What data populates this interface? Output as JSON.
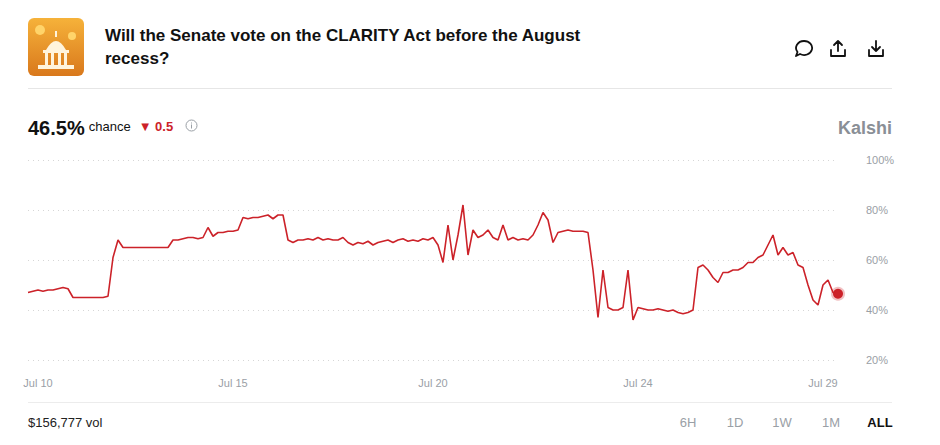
{
  "chart_data": {
    "type": "line",
    "title": "Will the Senate vote on the CLARITY Act before the August recess?",
    "categories": [
      null,
      null,
      "Jul 10",
      null,
      null,
      null,
      null,
      null,
      null,
      null,
      null,
      null,
      null,
      null,
      null,
      null,
      null,
      null,
      null,
      null,
      null,
      null,
      null,
      null,
      null,
      null,
      null,
      null,
      null,
      null,
      null,
      null,
      null,
      null,
      null,
      null,
      null,
      null,
      null,
      null,
      null,
      "Jul 15",
      null,
      null,
      null,
      null,
      null,
      null,
      null,
      null,
      null,
      null,
      null,
      null,
      null,
      null,
      null,
      null,
      null,
      null,
      null,
      null,
      null,
      null,
      null,
      null,
      null,
      null,
      null,
      null,
      null,
      null,
      null,
      null,
      null,
      null,
      null,
      null,
      null,
      null,
      null,
      "Jul 20",
      null,
      null,
      null,
      null,
      null,
      null,
      null,
      null,
      null,
      null,
      null,
      null,
      null,
      null,
      null,
      null,
      null,
      null,
      null,
      null,
      null,
      null,
      null,
      null,
      null,
      null,
      null,
      null,
      null,
      null,
      null,
      null,
      null,
      null,
      null,
      null,
      null,
      null,
      null,
      null,
      "Jul 24",
      null,
      null,
      null,
      null,
      null,
      null,
      null,
      null,
      null,
      null,
      null,
      null,
      null,
      null,
      null,
      null,
      null,
      null,
      null,
      null,
      null,
      null,
      null,
      null,
      null,
      null,
      null,
      null,
      null,
      null,
      null,
      null,
      null,
      null,
      null,
      null,
      "Jul 29",
      null,
      null,
      null
    ],
    "values": [
      47,
      47.5,
      48,
      47.5,
      48,
      48,
      48.5,
      49,
      48.5,
      45,
      45,
      45,
      45,
      45,
      45,
      45,
      45.5,
      61,
      68,
      65,
      65,
      65,
      65,
      65,
      65,
      65,
      65,
      65,
      65,
      68,
      68,
      68.5,
      69,
      69,
      68.5,
      69,
      73,
      69.5,
      71,
      71,
      71.5,
      71.5,
      72,
      77,
      76.5,
      77,
      77,
      77.5,
      78,
      76.5,
      78,
      78,
      68,
      67,
      68,
      68,
      68.5,
      68,
      69,
      68,
      68.5,
      68,
      68,
      69,
      67,
      66,
      67,
      66.5,
      67.5,
      66,
      67,
      67.5,
      68,
      67,
      68,
      68.5,
      67.5,
      68,
      67.5,
      68.5,
      68,
      69,
      66,
      59,
      74,
      60,
      70,
      82,
      62,
      72,
      69,
      70,
      72,
      69,
      68,
      74,
      68,
      69,
      68,
      68.5,
      68,
      70,
      74,
      79,
      76,
      67,
      71,
      71.5,
      72,
      71.5,
      71.5,
      71.5,
      71,
      56,
      37,
      56,
      41,
      40,
      40,
      41,
      56,
      36,
      41,
      40.5,
      40,
      40,
      40.5,
      40,
      39.5,
      40,
      39,
      38.5,
      39,
      40,
      57,
      58,
      56,
      53,
      51,
      55,
      55,
      56,
      56,
      57,
      59,
      59,
      61,
      62,
      66,
      70,
      62,
      65,
      62,
      63,
      58,
      57,
      50,
      44,
      42,
      50,
      52,
      47,
      46.5
    ],
    "color": "#cc2229",
    "ylim": [
      20,
      100
    ],
    "yticks": [
      {
        "value": 20,
        "label": "20%"
      },
      {
        "value": 40,
        "label": "40%"
      },
      {
        "value": 60,
        "label": "60%"
      },
      {
        "value": 80,
        "label": "80%"
      },
      {
        "value": 100,
        "label": "100%"
      }
    ],
    "grid": true
  },
  "page": {
    "chance": "46.5%",
    "chance_label": "chance",
    "change": "▼ 0.5",
    "brand": "Kalshi",
    "volume": "$156,777 vol",
    "ranges": [
      "6H",
      "1D",
      "1W",
      "1M",
      "ALL"
    ],
    "selected_range": "ALL"
  }
}
